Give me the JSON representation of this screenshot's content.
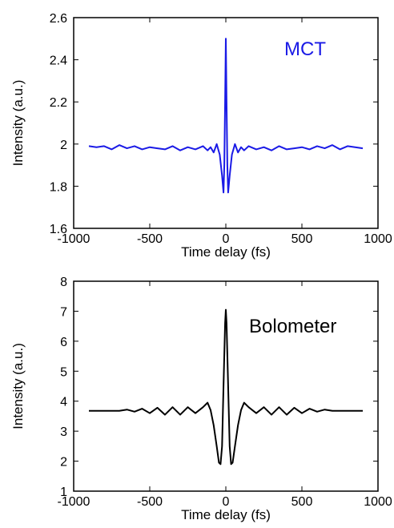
{
  "chart_data": [
    {
      "type": "line",
      "annotation": "MCT",
      "annotation_color": "#1a1ae6",
      "line_color": "#1a1ae6",
      "xlabel": "Time delay (fs)",
      "ylabel": "Intensity (a.u.)",
      "xlim": [
        -1000,
        1000
      ],
      "ylim": [
        1.6,
        2.6
      ],
      "x_ticks": [
        -1000,
        -500,
        0,
        500,
        1000
      ],
      "y_ticks": [
        1.6,
        1.8,
        2,
        2.2,
        2.4,
        2.6
      ],
      "x_tick_labels": [
        "-1000",
        "-500",
        "0",
        "500",
        "1000"
      ],
      "y_tick_labels": [
        "1.6",
        "1.8",
        "2",
        "2.2",
        "2.4",
        "2.6"
      ],
      "series": [
        {
          "x": [
            -900,
            -850,
            -800,
            -750,
            -700,
            -650,
            -600,
            -550,
            -500,
            -450,
            -400,
            -350,
            -300,
            -250,
            -200,
            -150,
            -120,
            -100,
            -80,
            -60,
            -40,
            -25,
            -15,
            -10,
            -5,
            0,
            5,
            10,
            15,
            25,
            40,
            60,
            80,
            100,
            120,
            150,
            200,
            250,
            300,
            350,
            400,
            450,
            500,
            550,
            600,
            650,
            700,
            750,
            800,
            850,
            900
          ],
          "y": [
            1.99,
            1.985,
            1.99,
            1.975,
            1.995,
            1.98,
            1.99,
            1.975,
            1.985,
            1.98,
            1.975,
            1.99,
            1.97,
            1.985,
            1.975,
            1.99,
            1.97,
            1.985,
            1.96,
            2.0,
            1.95,
            1.85,
            1.77,
            1.9,
            2.2,
            2.5,
            2.2,
            1.9,
            1.77,
            1.85,
            1.95,
            2.0,
            1.96,
            1.985,
            1.97,
            1.99,
            1.975,
            1.985,
            1.97,
            1.99,
            1.975,
            1.98,
            1.985,
            1.975,
            1.99,
            1.98,
            1.995,
            1.975,
            1.99,
            1.985,
            1.98
          ]
        }
      ]
    },
    {
      "type": "line",
      "annotation": "Bolometer",
      "annotation_color": "#000000",
      "line_color": "#000000",
      "xlabel": "Time delay (fs)",
      "ylabel": "Intensity (a.u.)",
      "xlim": [
        -1000,
        1000
      ],
      "ylim": [
        1,
        8
      ],
      "x_ticks": [
        -1000,
        -500,
        0,
        500,
        1000
      ],
      "y_ticks": [
        1,
        2,
        3,
        4,
        5,
        6,
        7,
        8
      ],
      "x_tick_labels": [
        "-1000",
        "-500",
        "0",
        "500",
        "1000"
      ],
      "y_tick_labels": [
        "1",
        "2",
        "3",
        "4",
        "5",
        "6",
        "7",
        "8"
      ],
      "series": [
        {
          "x": [
            -900,
            -800,
            -700,
            -650,
            -600,
            -550,
            -500,
            -450,
            -400,
            -350,
            -300,
            -250,
            -200,
            -150,
            -120,
            -100,
            -80,
            -60,
            -45,
            -35,
            -25,
            -15,
            -5,
            0,
            5,
            15,
            25,
            35,
            45,
            60,
            80,
            100,
            120,
            150,
            200,
            250,
            300,
            350,
            400,
            450,
            500,
            550,
            600,
            650,
            700,
            800,
            900
          ],
          "y": [
            3.68,
            3.68,
            3.68,
            3.72,
            3.65,
            3.75,
            3.6,
            3.78,
            3.55,
            3.8,
            3.55,
            3.8,
            3.6,
            3.8,
            3.95,
            3.7,
            3.2,
            2.5,
            1.95,
            1.9,
            2.5,
            4.5,
            6.6,
            7.05,
            6.6,
            4.5,
            2.5,
            1.9,
            1.95,
            2.5,
            3.2,
            3.7,
            3.95,
            3.8,
            3.6,
            3.8,
            3.55,
            3.8,
            3.55,
            3.78,
            3.6,
            3.75,
            3.65,
            3.72,
            3.68,
            3.68,
            3.68
          ]
        }
      ]
    }
  ]
}
